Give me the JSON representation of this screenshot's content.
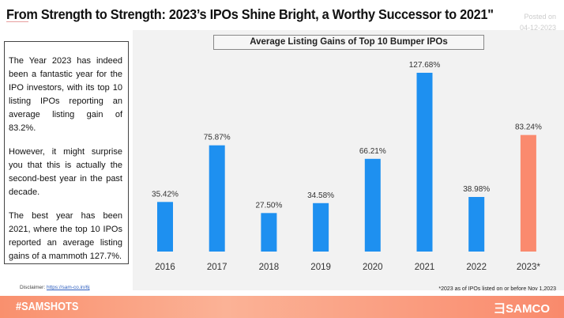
{
  "header": {
    "title": "From Strength to Strength: 2023’s IPOs Shine Bright, a Worthy Successor to 2021\"",
    "posted_label": "Posted on",
    "posted_date": "04-12-2023"
  },
  "sidebar": {
    "paragraphs": [
      "The Year 2023 has indeed been a fantastic year for the IPO investors, with its top 10 listing IPOs reporting an average listing gain of 83.2%.",
      "However, it might surprise you that this is actually the second-best year in the past decade.",
      "The best year has been 2021, where the top 10 IPOs reported an average listing gains of a mammoth 127.7%."
    ]
  },
  "chart_data": {
    "type": "bar",
    "title": "Average Listing Gains of Top 10 Bumper IPOs",
    "categories": [
      "2016",
      "2017",
      "2018",
      "2019",
      "2020",
      "2021",
      "2022",
      "2023*"
    ],
    "values": [
      35.42,
      75.87,
      27.5,
      34.58,
      66.21,
      127.68,
      38.98,
      83.24
    ],
    "labels": [
      "35.42%",
      "75.87%",
      "27.50%",
      "34.58%",
      "66.21%",
      "127.68%",
      "38.98%",
      "83.24%"
    ],
    "colors": [
      "#1e90f0",
      "#1e90f0",
      "#1e90f0",
      "#1e90f0",
      "#1e90f0",
      "#1e90f0",
      "#1e90f0",
      "#fa8a6e"
    ],
    "grid": false
  },
  "footer": {
    "disclaimer_label": "Disclaimer:",
    "disclaimer_link": "https://sam-co.in/6j",
    "note": "*2023 as of IPOs listed on or before Nov 1,2023",
    "hashtag": "#SAMSHOTS",
    "brand": "SAMCO"
  }
}
